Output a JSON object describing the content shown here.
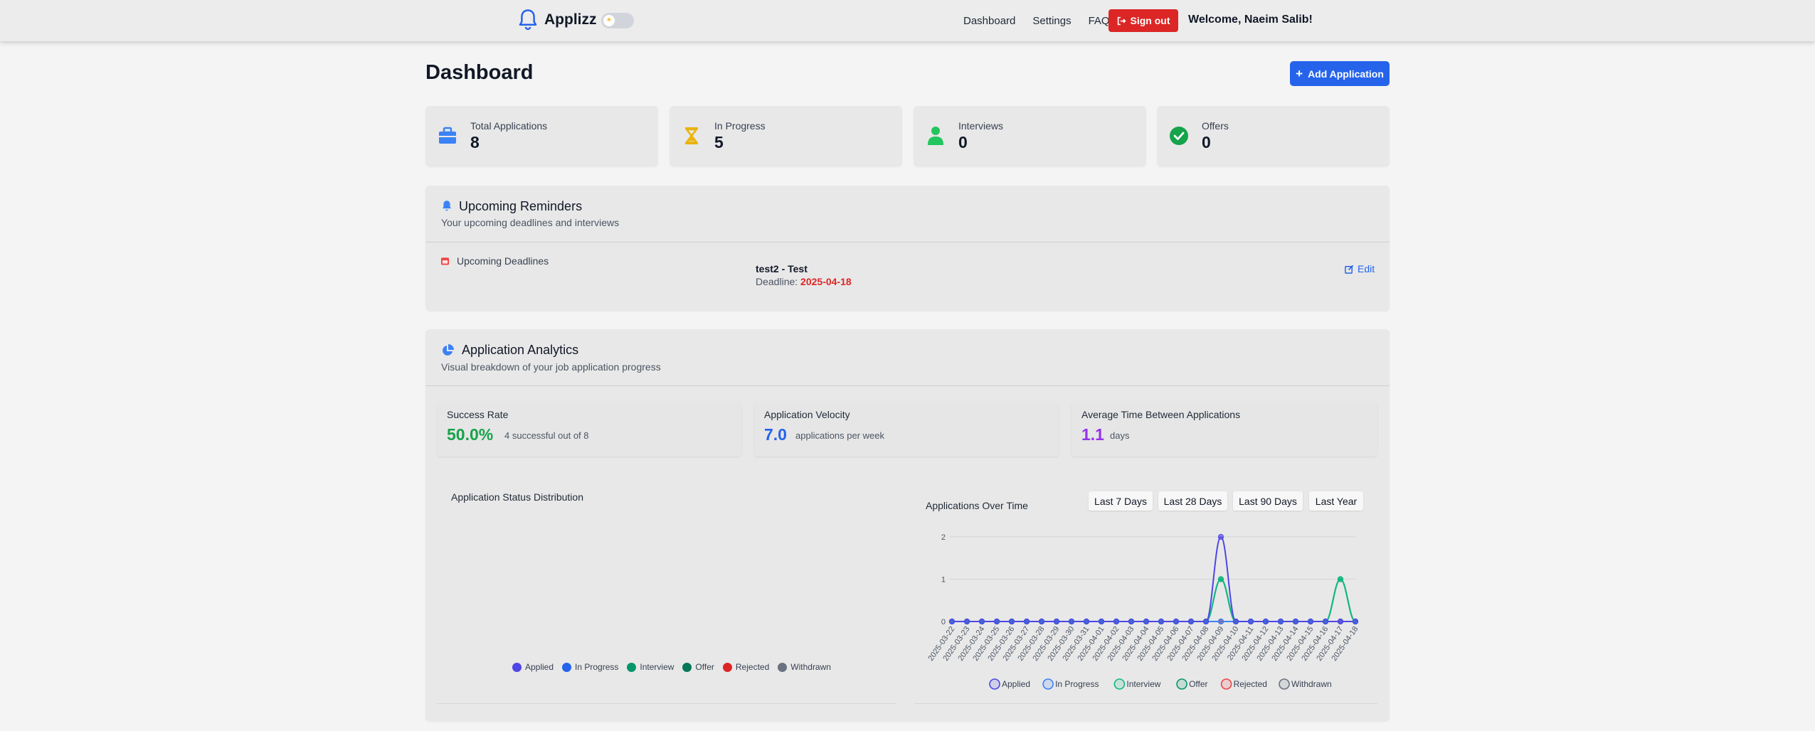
{
  "header": {
    "app_name": "Applizz",
    "nav": [
      "Dashboard",
      "Settings",
      "FAQ"
    ],
    "sign_out": "Sign out",
    "welcome": "Welcome, Naeim Salib!"
  },
  "page": {
    "title": "Dashboard",
    "add_button": "Add Application"
  },
  "stats": [
    {
      "label": "Total Applications",
      "value": "8",
      "icon": "briefcase-icon",
      "color": "#3b82f6"
    },
    {
      "label": "In Progress",
      "value": "5",
      "icon": "hourglass-icon",
      "color": "#eab308"
    },
    {
      "label": "Interviews",
      "value": "0",
      "icon": "user-icon",
      "color": "#22c55e"
    },
    {
      "label": "Offers",
      "value": "0",
      "icon": "check-circle-icon",
      "color": "#16a34a"
    }
  ],
  "reminders": {
    "title": "Upcoming Reminders",
    "subtitle": "Your upcoming deadlines and interviews",
    "section_label": "Upcoming Deadlines",
    "item_title": "test2 - Test",
    "deadline_label": "Deadline:",
    "deadline_date": "2025-04-18",
    "edit": "Edit"
  },
  "analytics": {
    "title": "Application Analytics",
    "subtitle": "Visual breakdown of your job application progress",
    "metrics": [
      {
        "label": "Success Rate",
        "value": "50.0%",
        "note": "4 successful out of 8",
        "color": "#16a34a"
      },
      {
        "label": "Application Velocity",
        "value": "7.0",
        "note": "applications per week",
        "color": "#2563eb"
      },
      {
        "label": "Average Time Between Applications",
        "value": "1.1",
        "note": "days",
        "color": "#9333ea"
      }
    ],
    "distribution_title": "Application Status Distribution",
    "distribution_legend": [
      {
        "label": "Applied",
        "color": "#4f46e5"
      },
      {
        "label": "In Progress",
        "color": "#2563eb"
      },
      {
        "label": "Interview",
        "color": "#059669"
      },
      {
        "label": "Offer",
        "color": "#047857"
      },
      {
        "label": "Rejected",
        "color": "#dc2626"
      },
      {
        "label": "Withdrawn",
        "color": "#6b7280"
      }
    ],
    "time_title": "Applications Over Time",
    "ranges": [
      "Last 7 Days",
      "Last 28 Days",
      "Last 90 Days",
      "Last Year"
    ]
  },
  "chart_data": {
    "type": "line",
    "title": "Applications Over Time",
    "x": [
      "2025-03-22",
      "2025-03-23",
      "2025-03-24",
      "2025-03-25",
      "2025-03-26",
      "2025-03-27",
      "2025-03-28",
      "2025-03-29",
      "2025-03-30",
      "2025-03-31",
      "2025-04-01",
      "2025-04-02",
      "2025-04-03",
      "2025-04-04",
      "2025-04-05",
      "2025-04-06",
      "2025-04-07",
      "2025-04-08",
      "2025-04-09",
      "2025-04-10",
      "2025-04-11",
      "2025-04-12",
      "2025-04-13",
      "2025-04-14",
      "2025-04-15",
      "2025-04-16",
      "2025-04-17",
      "2025-04-18"
    ],
    "ylim": [
      0,
      2
    ],
    "yticks": [
      0,
      1,
      2
    ],
    "grid": true,
    "legend_position": "bottom",
    "series": [
      {
        "name": "Applied",
        "color": "#4f46e5",
        "values": [
          0,
          0,
          0,
          0,
          0,
          0,
          0,
          0,
          0,
          0,
          0,
          0,
          0,
          0,
          0,
          0,
          0,
          0,
          2,
          0,
          0,
          0,
          0,
          0,
          0,
          0,
          0,
          0
        ]
      },
      {
        "name": "In Progress",
        "color": "#3b82f6",
        "values": [
          0,
          0,
          0,
          0,
          0,
          0,
          0,
          0,
          0,
          0,
          0,
          0,
          0,
          0,
          0,
          0,
          0,
          0,
          0,
          0,
          0,
          0,
          0,
          0,
          0,
          0,
          0,
          0
        ]
      },
      {
        "name": "Interview",
        "color": "#10b981",
        "values": [
          0,
          0,
          0,
          0,
          0,
          0,
          0,
          0,
          0,
          0,
          0,
          0,
          0,
          0,
          0,
          0,
          0,
          0,
          1,
          0,
          0,
          0,
          0,
          0,
          0,
          0,
          1,
          0
        ]
      },
      {
        "name": "Offer",
        "color": "#059669",
        "values": [
          0,
          0,
          0,
          0,
          0,
          0,
          0,
          0,
          0,
          0,
          0,
          0,
          0,
          0,
          0,
          0,
          0,
          0,
          1,
          0,
          0,
          0,
          0,
          0,
          0,
          0,
          1,
          0
        ]
      },
      {
        "name": "Rejected",
        "color": "#ef4444",
        "values": [
          0,
          0,
          0,
          0,
          0,
          0,
          0,
          0,
          0,
          0,
          0,
          0,
          0,
          0,
          0,
          0,
          0,
          0,
          0,
          0,
          0,
          0,
          0,
          0,
          0,
          0,
          0,
          0
        ]
      },
      {
        "name": "Withdrawn",
        "color": "#6b7280",
        "values": [
          0,
          0,
          0,
          0,
          0,
          0,
          0,
          0,
          0,
          0,
          0,
          0,
          0,
          0,
          0,
          0,
          0,
          0,
          0,
          0,
          0,
          0,
          0,
          0,
          0,
          0,
          0,
          0
        ]
      }
    ]
  }
}
